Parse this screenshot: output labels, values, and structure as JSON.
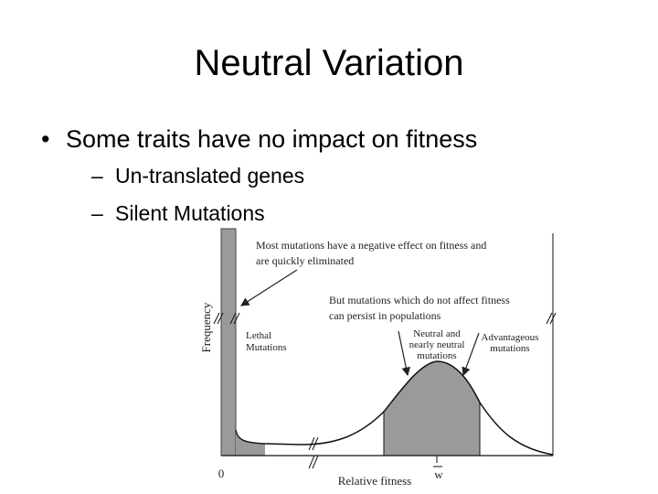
{
  "slide": {
    "title": "Neutral Variation",
    "bullet": "Some traits have no impact on fitness",
    "sub_bullets": [
      "Un-translated genes",
      "Silent Mutations"
    ],
    "figure": {
      "y_axis_label": "Frequency",
      "x_axis_label": "Relative fitness",
      "x_origin_label": "0",
      "x_mean_label": "w",
      "note_negative": [
        "Most mutations have a negative effect on fitness and",
        "are quickly eliminated"
      ],
      "note_neutral": [
        "But mutations which do not affect fitness",
        "can persist in populations"
      ],
      "lethal_label": [
        "Lethal",
        "Mutations"
      ],
      "neutral_label": [
        "Neutral and",
        "nearly neutral",
        "mutations"
      ],
      "advantageous_label": [
        "Advantageous",
        "mutations"
      ]
    }
  }
}
